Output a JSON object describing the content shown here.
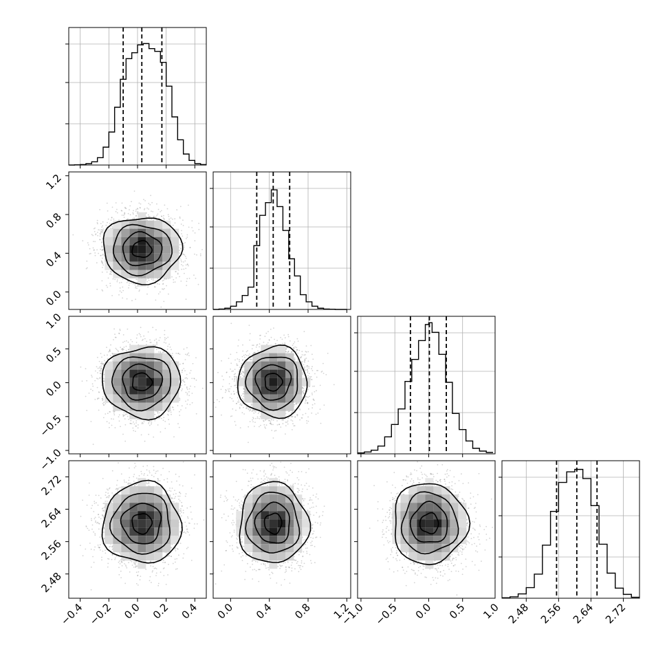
{
  "chart_data": {
    "type": "scatter",
    "kind": "corner",
    "grid": true,
    "colors": {
      "axes": "#000000",
      "grid": "#b0b0b0",
      "points": "#808080",
      "density": "#000000"
    },
    "panels_grid": 4,
    "parameters": [
      {
        "mean": 0.03,
        "sd": 0.13,
        "q16": -0.1,
        "q50": 0.03,
        "q84": 0.17,
        "xlim": [
          -0.48,
          0.48
        ],
        "ticks": [
          -0.4,
          -0.2,
          0.0,
          0.2,
          0.4
        ],
        "tick_labels": [
          "−0.4",
          "−0.2",
          "0.0",
          "0.2",
          "0.4"
        ]
      },
      {
        "mean": 0.44,
        "sd": 0.17,
        "q16": 0.27,
        "q50": 0.44,
        "q84": 0.61,
        "xlim": [
          -0.18,
          1.24
        ],
        "ticks": [
          0.0,
          0.4,
          0.8,
          1.2
        ],
        "tick_labels": [
          "0.0",
          "0.4",
          "0.8",
          "1.2"
        ]
      },
      {
        "mean": 0.01,
        "sd": 0.26,
        "q16": -0.27,
        "q50": 0.01,
        "q84": 0.26,
        "xlim": [
          -1.05,
          0.98
        ],
        "ticks": [
          -1.0,
          -0.5,
          0.0,
          0.5,
          1.0
        ],
        "tick_labels": [
          "−1.0",
          "−0.5",
          "0.0",
          "0.5",
          "1.0"
        ]
      },
      {
        "mean": 2.605,
        "sd": 0.05,
        "q16": 2.555,
        "q50": 2.605,
        "q84": 2.655,
        "xlim": [
          2.42,
          2.76
        ],
        "ticks": [
          2.48,
          2.56,
          2.64,
          2.72
        ],
        "tick_labels": [
          "2.48",
          "2.56",
          "2.64",
          "2.72"
        ]
      }
    ],
    "histograms": [
      {
        "parameter": 0,
        "bin_edges": [
          -0.48,
          -0.44,
          -0.4,
          -0.36,
          -0.32,
          -0.28,
          -0.24,
          -0.2,
          -0.16,
          -0.12,
          -0.08,
          -0.04,
          0.0,
          0.04,
          0.08,
          0.12,
          0.16,
          0.2,
          0.24,
          0.28,
          0.32,
          0.36,
          0.4,
          0.44,
          0.48
        ],
        "counts": [
          0,
          0.5,
          1,
          3,
          7,
          16,
          39,
          72,
          126,
          187,
          232,
          245,
          262,
          265,
          254,
          248,
          224,
          172,
          105,
          55,
          24,
          10,
          3,
          1
        ],
        "ylim": [
          0,
          300
        ]
      },
      {
        "parameter": 1,
        "bin_edges": [
          -0.18,
          -0.12,
          -0.06,
          0.0,
          0.06,
          0.12,
          0.18,
          0.24,
          0.3,
          0.36,
          0.42,
          0.48,
          0.54,
          0.6,
          0.66,
          0.72,
          0.78,
          0.84,
          0.9,
          0.96,
          1.02,
          1.08,
          1.14,
          1.2
        ],
        "counts": [
          0,
          1,
          3,
          8,
          19,
          35,
          56,
          160,
          236,
          268,
          300,
          258,
          198,
          127,
          84,
          37,
          19,
          8,
          3,
          1,
          0.5,
          0,
          0
        ],
        "ylim": [
          0,
          345
        ]
      },
      {
        "parameter": 2,
        "bin_edges": [
          -1.05,
          -0.95,
          -0.85,
          -0.75,
          -0.65,
          -0.55,
          -0.45,
          -0.35,
          -0.25,
          -0.15,
          -0.05,
          0.0,
          0.05,
          0.15,
          0.25,
          0.35,
          0.45,
          0.55,
          0.65,
          0.75,
          0.85,
          0.95
        ],
        "counts": [
          2,
          4,
          8,
          17,
          37,
          64,
          98,
          158,
          206,
          247,
          282,
          286,
          265,
          217,
          156,
          88,
          53,
          28,
          12,
          6,
          3
        ],
        "ylim": [
          0,
          300
        ]
      },
      {
        "parameter": 3,
        "bin_edges": [
          2.42,
          2.44,
          2.46,
          2.48,
          2.5,
          2.52,
          2.54,
          2.56,
          2.58,
          2.6,
          2.62,
          2.64,
          2.66,
          2.68,
          2.7,
          2.72,
          2.74,
          2.76
        ],
        "counts": [
          1,
          3,
          9,
          22,
          50,
          110,
          180,
          240,
          262,
          267,
          248,
          192,
          112,
          52,
          21,
          8,
          2
        ],
        "ylim": [
          0,
          285
        ]
      }
    ],
    "pairs": [
      {
        "x_param": 0,
        "y_param": 1,
        "y_ticks": [
          0.0,
          0.4,
          0.8,
          1.2
        ],
        "y_tick_labels": [
          "0.0",
          "0.4",
          "0.8",
          "1.2"
        ],
        "ylim": [
          -0.18,
          1.24
        ]
      },
      {
        "x_param": 0,
        "y_param": 2,
        "y_ticks": [
          -1.0,
          -0.5,
          0.0,
          0.5,
          1.0
        ],
        "y_tick_labels": [
          "−1.0",
          "−0.5",
          "0.0",
          "0.5",
          "1.0"
        ],
        "ylim": [
          -1.05,
          0.98
        ]
      },
      {
        "x_param": 1,
        "y_param": 2,
        "y_ticks": [
          -1.0,
          -0.5,
          0.0,
          0.5,
          1.0
        ],
        "y_tick_labels": [
          "−1.0",
          "−0.5",
          "0.0",
          "0.5",
          "1.0"
        ],
        "ylim": [
          -1.05,
          0.98
        ]
      },
      {
        "x_param": 0,
        "y_param": 3,
        "y_ticks": [
          2.48,
          2.56,
          2.64,
          2.72
        ],
        "y_tick_labels": [
          "2.48",
          "2.56",
          "2.64",
          "2.72"
        ],
        "ylim": [
          2.42,
          2.76
        ]
      },
      {
        "x_param": 1,
        "y_param": 3,
        "y_ticks": [
          2.48,
          2.56,
          2.64,
          2.72
        ],
        "y_tick_labels": [
          "2.48",
          "2.56",
          "2.64",
          "2.72"
        ],
        "ylim": [
          2.42,
          2.76
        ]
      },
      {
        "x_param": 2,
        "y_param": 3,
        "y_ticks": [
          2.48,
          2.56,
          2.64,
          2.72
        ],
        "y_tick_labels": [
          "2.48",
          "2.56",
          "2.64",
          "2.72"
        ],
        "ylim": [
          2.42,
          2.76
        ]
      }
    ],
    "contour_levels_sigma": [
      0.5,
      1.0,
      1.5,
      2.0
    ]
  }
}
